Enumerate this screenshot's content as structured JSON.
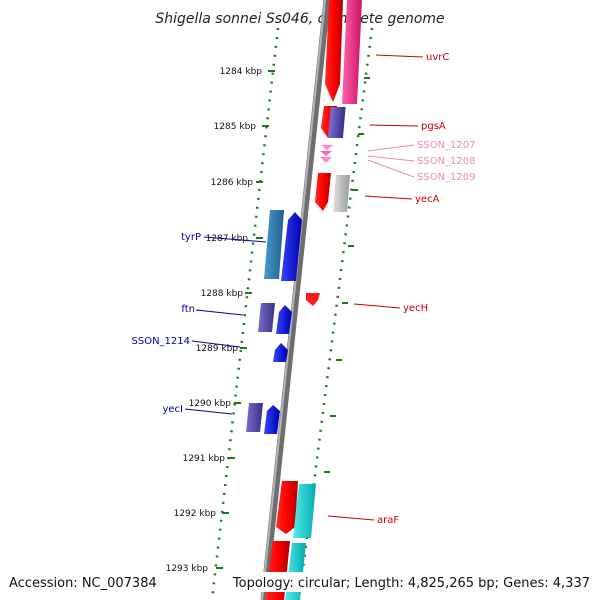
{
  "title": "Shigella sonnei Ss046, complete genome",
  "accession": "Accession: NC_007384",
  "topology": "Topology: circular; Length: 4,825,265 bp; Genes: 4,337",
  "colors": {
    "backbone": "#8a8a8a",
    "tick_green": "#1a7a1a",
    "label_red": "#cc0000",
    "label_blue": "#0000aa",
    "label_pink": "#ee88bb"
  },
  "kbp_ticks": [
    {
      "label": "1284 kbp"
    },
    {
      "label": "1285 kbp"
    },
    {
      "label": "1286 kbp"
    },
    {
      "label": "1287 kbp"
    },
    {
      "label": "1288 kbp"
    },
    {
      "label": "1289 kbp"
    },
    {
      "label": "1290 kbp"
    },
    {
      "label": "1291 kbp"
    },
    {
      "label": "1292 kbp"
    },
    {
      "label": "1293 kbp"
    }
  ],
  "right_labels": [
    {
      "text": "uvrC",
      "color": "#cc0000"
    },
    {
      "text": "pgsA",
      "color": "#cc0000"
    },
    {
      "text": "SSON_1207",
      "color": "#ee88bb"
    },
    {
      "text": "SSON_1208",
      "color": "#ee88bb"
    },
    {
      "text": "SSON_1209",
      "color": "#ee88bb"
    },
    {
      "text": "yecA",
      "color": "#cc0000"
    },
    {
      "text": "yecH",
      "color": "#cc0000"
    },
    {
      "text": "araF",
      "color": "#cc0000"
    }
  ],
  "left_labels": [
    {
      "text": "tyrP",
      "color": "#0000aa"
    },
    {
      "text": "ftn",
      "color": "#0000aa"
    },
    {
      "text": "SSON_1214",
      "color": "#0000aa"
    },
    {
      "text": "yecI",
      "color": "#0000aa"
    }
  ]
}
